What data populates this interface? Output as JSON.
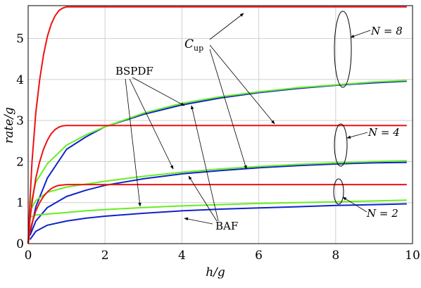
{
  "chart_data": {
    "type": "line",
    "xlabel": "h/g",
    "ylabel": "rate/g",
    "xlim": [
      0,
      10
    ],
    "ylim": [
      0,
      5.8
    ],
    "grid": true,
    "x_ticks": [
      "0",
      "2",
      "4",
      "6",
      "8",
      "10"
    ],
    "y_ticks": [
      "0",
      "1",
      "2",
      "3",
      "4",
      "5"
    ],
    "colors": {
      "cup": "#ee1111",
      "bspdf": "#66ee22",
      "baf": "#1122cc"
    },
    "series": [
      {
        "group": "N = 8",
        "kind": "Cup",
        "color": "#ee1111",
        "x": [
          0,
          0.05,
          0.1,
          0.2,
          0.3,
          0.4,
          0.5,
          0.6,
          0.7,
          0.8,
          0.9,
          1.0,
          9.85
        ],
        "y": [
          0,
          1.1,
          2.0,
          3.2,
          4.0,
          4.6,
          5.05,
          5.35,
          5.55,
          5.68,
          5.74,
          5.77,
          5.77
        ]
      },
      {
        "group": "N = 8",
        "kind": "BSPDF",
        "color": "#66ee22",
        "x": [
          0.05,
          0.2,
          0.5,
          1,
          1.5,
          2,
          3,
          4,
          5,
          6,
          7,
          8,
          9,
          9.85
        ],
        "y": [
          0.9,
          1.5,
          1.95,
          2.4,
          2.65,
          2.85,
          3.18,
          3.42,
          3.58,
          3.7,
          3.8,
          3.87,
          3.94,
          3.98
        ]
      },
      {
        "group": "N = 8",
        "kind": "BAF",
        "color": "#1122cc",
        "x": [
          0.05,
          0.2,
          0.5,
          1,
          1.5,
          2,
          3,
          4,
          5,
          6,
          7,
          8,
          9,
          9.85
        ],
        "y": [
          0.25,
          0.9,
          1.6,
          2.3,
          2.6,
          2.85,
          3.15,
          3.38,
          3.55,
          3.68,
          3.78,
          3.86,
          3.92,
          3.96
        ]
      },
      {
        "group": "N = 4",
        "kind": "Cup",
        "color": "#ee1111",
        "x": [
          0,
          0.05,
          0.1,
          0.2,
          0.3,
          0.4,
          0.5,
          0.6,
          0.7,
          0.8,
          0.9,
          1.0,
          9.85
        ],
        "y": [
          0,
          0.6,
          1.0,
          1.6,
          2.0,
          2.3,
          2.52,
          2.68,
          2.78,
          2.84,
          2.87,
          2.88,
          2.88
        ]
      },
      {
        "group": "N = 4",
        "kind": "BSPDF",
        "color": "#66ee22",
        "x": [
          0.05,
          0.2,
          0.5,
          1,
          1.5,
          2,
          3,
          4,
          5,
          6,
          7,
          8,
          9,
          9.85
        ],
        "y": [
          0.8,
          1.05,
          1.25,
          1.38,
          1.45,
          1.52,
          1.64,
          1.74,
          1.82,
          1.88,
          1.93,
          1.97,
          2.0,
          2.02
        ]
      },
      {
        "group": "N = 4",
        "kind": "BAF",
        "color": "#1122cc",
        "x": [
          0.05,
          0.2,
          0.5,
          1,
          1.5,
          2,
          3,
          4,
          5,
          6,
          7,
          8,
          9,
          9.85
        ],
        "y": [
          0.2,
          0.55,
          0.88,
          1.15,
          1.3,
          1.42,
          1.58,
          1.7,
          1.78,
          1.85,
          1.9,
          1.94,
          1.97,
          1.98
        ]
      },
      {
        "group": "N = 2",
        "kind": "Cup",
        "color": "#ee1111",
        "x": [
          0,
          0.05,
          0.1,
          0.2,
          0.3,
          0.4,
          0.5,
          0.6,
          0.7,
          0.8,
          0.9,
          1.0,
          9.85
        ],
        "y": [
          0,
          0.3,
          0.5,
          0.8,
          1.0,
          1.15,
          1.26,
          1.34,
          1.39,
          1.42,
          1.43,
          1.44,
          1.44
        ]
      },
      {
        "group": "N = 2",
        "kind": "BSPDF",
        "color": "#66ee22",
        "x": [
          0.05,
          0.2,
          0.5,
          1,
          1.5,
          2,
          3,
          4,
          5,
          6,
          7,
          8,
          9,
          9.85
        ],
        "y": [
          0.65,
          0.7,
          0.72,
          0.76,
          0.8,
          0.83,
          0.88,
          0.92,
          0.95,
          0.98,
          1.0,
          1.02,
          1.04,
          1.06
        ]
      },
      {
        "group": "N = 2",
        "kind": "BAF",
        "color": "#1122cc",
        "x": [
          0.05,
          0.2,
          0.5,
          1,
          1.5,
          2,
          3,
          4,
          5,
          6,
          7,
          8,
          9,
          9.85
        ],
        "y": [
          0.1,
          0.3,
          0.45,
          0.55,
          0.62,
          0.67,
          0.74,
          0.8,
          0.84,
          0.87,
          0.9,
          0.93,
          0.95,
          0.97
        ]
      }
    ],
    "annotations": {
      "cup": "C",
      "cup_sub": "up",
      "bspdf": "BSPDF",
      "baf": "BAF",
      "n8": "N = 8",
      "n4": "N = 4",
      "n2": "N = 2"
    }
  }
}
